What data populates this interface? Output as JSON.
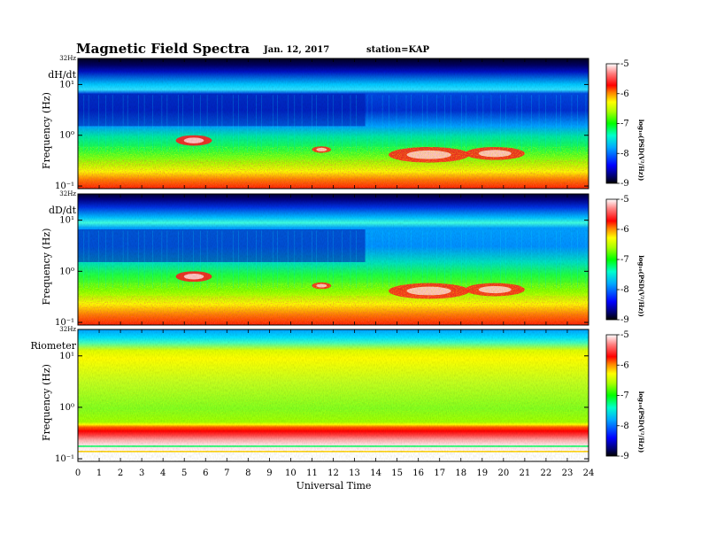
{
  "header": {
    "title": "Magnetic Field Spectra",
    "date": "Jan. 12, 2017",
    "station": "station=KAP"
  },
  "chart_data": {
    "type": "heatmap",
    "xlabel": "Universal Time",
    "x_ticks": [
      "0",
      "1",
      "2",
      "3",
      "4",
      "5",
      "6",
      "7",
      "8",
      "9",
      "10",
      "11",
      "12",
      "13",
      "14",
      "15",
      "16",
      "17",
      "18",
      "19",
      "20",
      "21",
      "22",
      "23",
      "24"
    ],
    "xlim": [
      0,
      24
    ],
    "ylabel": "Frequency (Hz)",
    "y_scale": "log",
    "y_top_label": "32Hz",
    "y_tick_labels": [
      "10¹",
      "10⁰",
      "10⁻¹"
    ],
    "colorbar": {
      "label": "log₁₀(PSD(V²/Hz))",
      "ticks": [
        "-5",
        "-6",
        "-7",
        "-8",
        "-9"
      ],
      "range": [
        -9,
        -5
      ]
    },
    "panels": [
      {
        "label": "dH/dt"
      },
      {
        "label": "dD/dt"
      },
      {
        "label": "Riometer"
      }
    ]
  }
}
